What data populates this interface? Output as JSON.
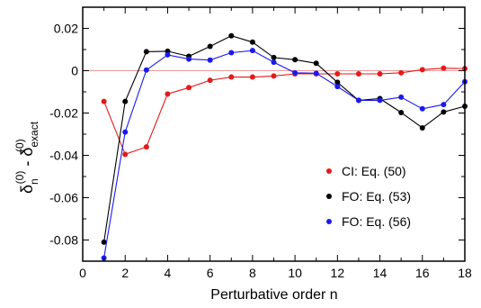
{
  "chart_data": {
    "type": "line",
    "xlabel": "Perturbative order n",
    "ylabel": {
      "main1": "δ",
      "sub1": "n",
      "sup1": "(0)",
      "dash": " - ",
      "main2": "δ",
      "sub2": "exact",
      "sup2": "(0)"
    },
    "xlim": [
      0,
      18
    ],
    "ylim": [
      -0.09,
      0.03
    ],
    "x_ticks": [
      0,
      2,
      4,
      6,
      8,
      10,
      12,
      14,
      16,
      18
    ],
    "x_tick_labels": [
      "0",
      "2",
      "4",
      "6",
      "8",
      "10",
      "12",
      "14",
      "16",
      "18"
    ],
    "y_ticks": [
      -0.08,
      -0.06,
      -0.04,
      -0.02,
      0,
      0.02
    ],
    "y_tick_labels": [
      "-0.08",
      "-0.06",
      "-0.04",
      "-0.02",
      "0",
      "0.02"
    ],
    "reference_line": {
      "y": 0,
      "color": "#e89a9a"
    },
    "legend_position": "bottom-right",
    "series": [
      {
        "name": "CI:  Eq. (50)",
        "color": "#e41a1a",
        "x": [
          1,
          2,
          3,
          4,
          5,
          6,
          7,
          8,
          9,
          10,
          11,
          12,
          13,
          14,
          15,
          16,
          17,
          18
        ],
        "y": [
          -0.0145,
          -0.0395,
          -0.036,
          -0.011,
          -0.008,
          -0.0045,
          -0.003,
          -0.003,
          -0.0025,
          -0.0015,
          -0.0015,
          -0.0015,
          -0.0015,
          -0.0015,
          -0.001,
          0.0005,
          0.0012,
          0.001
        ]
      },
      {
        "name": "FO: Eq. (53)",
        "color": "#000000",
        "x": [
          1,
          2,
          3,
          4,
          5,
          6,
          7,
          8,
          9,
          10,
          11,
          12,
          13,
          14,
          15,
          16,
          17,
          18
        ],
        "y": [
          -0.081,
          -0.0145,
          0.009,
          0.0092,
          0.0068,
          0.0115,
          0.0165,
          0.0135,
          0.0062,
          0.0052,
          0.0035,
          -0.0055,
          -0.014,
          -0.0132,
          -0.0198,
          -0.027,
          -0.0195,
          -0.0168
        ]
      },
      {
        "name": "FO: Eq. (56)",
        "color": "#1a1aee",
        "x": [
          1,
          2,
          3,
          4,
          5,
          6,
          7,
          8,
          9,
          10,
          11,
          12,
          13,
          14,
          15,
          16,
          17,
          18
        ],
        "y": [
          -0.0885,
          -0.029,
          0.0003,
          0.0075,
          0.0055,
          0.005,
          0.0085,
          0.0095,
          0.004,
          -0.001,
          -0.0012,
          -0.0075,
          -0.014,
          -0.014,
          -0.0125,
          -0.018,
          -0.016,
          -0.0052
        ]
      }
    ]
  }
}
